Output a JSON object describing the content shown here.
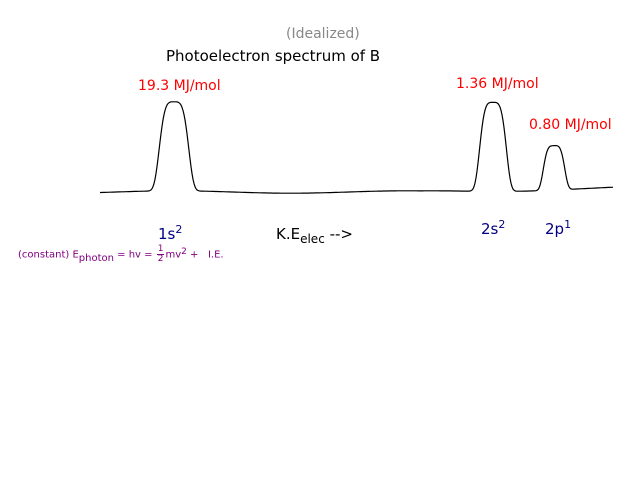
{
  "colors": {
    "subtitle": "#888888",
    "title": "#000000",
    "peak_label": "#ff0000",
    "orbital": "#000080",
    "equation": "#800080",
    "curve": "#000000"
  },
  "chart_data": {
    "type": "line",
    "title": "Photoelectron spectrum of B",
    "subtitle": "(Idealized)",
    "xlabel": {
      "text": "K.E",
      "subscript": "elec",
      "arrow": "-->"
    },
    "ylabel": "",
    "grid": false,
    "peaks": [
      {
        "orbital": "1s",
        "superscript": "2",
        "energy_label": "19.3 MJ/mol",
        "energy_MJ_per_mol": 19.3,
        "relative_height": 1.0
      },
      {
        "orbital": "2s",
        "superscript": "2",
        "energy_label": "1.36 MJ/mol",
        "energy_MJ_per_mol": 1.36,
        "relative_height": 1.0
      },
      {
        "orbital": "2p",
        "superscript": "1",
        "energy_label": "0.80 MJ/mol",
        "energy_MJ_per_mol": 0.8,
        "relative_height": 0.5
      }
    ]
  },
  "equation": {
    "prefix": "(constant) E",
    "photon_sub": "photon",
    "eq1": " = hv  =",
    "frac_num": "1",
    "frac_den": "2",
    "mv": "mv",
    "mv_sup": "2",
    "plus": "  +",
    "ie": "I.E."
  }
}
